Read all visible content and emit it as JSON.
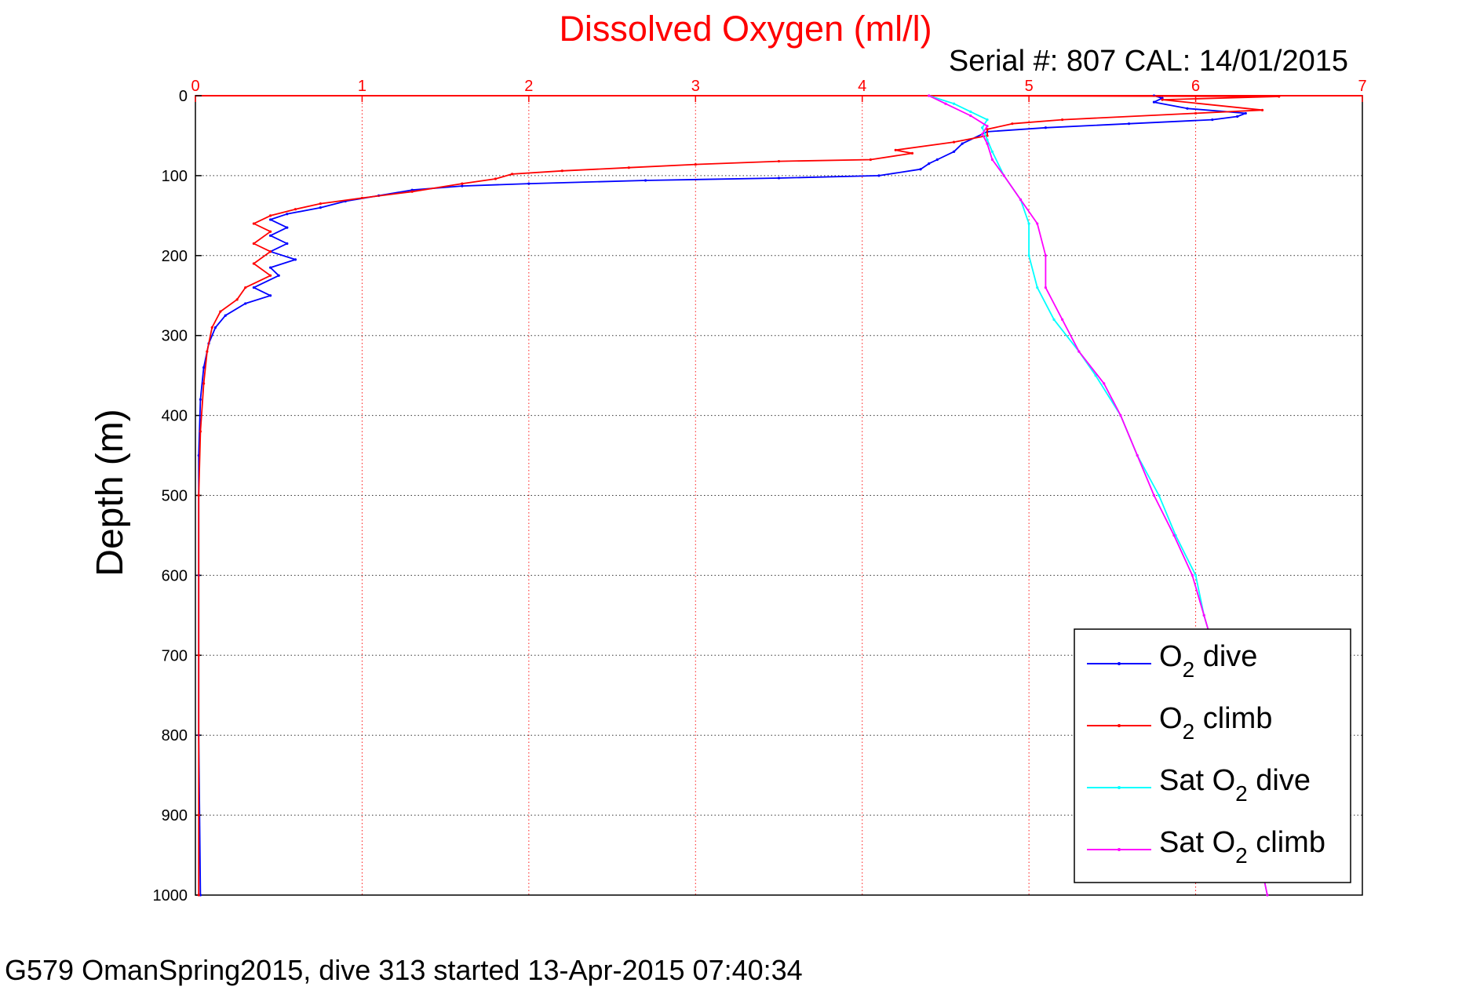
{
  "chart_data": {
    "type": "line",
    "title": "Dissolved Oxygen (ml/l)",
    "subtitle": "Serial #: 807  CAL: 14/01/2015",
    "ylabel": "Depth (m)",
    "footer": "G579 OmanSpring2015, dive 313 started 13-Apr-2015 07:40:34",
    "xlim": [
      0,
      7
    ],
    "ylim": [
      0,
      1000
    ],
    "y_reversed": true,
    "x_axis_position": "top",
    "x_ticks": [
      "0",
      "1",
      "2",
      "3",
      "4",
      "5",
      "6",
      "7"
    ],
    "y_ticks": [
      "0",
      "100",
      "200",
      "300",
      "400",
      "500",
      "600",
      "700",
      "800",
      "900",
      "1000"
    ],
    "grid": true,
    "legend_position": "bottom-right",
    "colors": {
      "title": "#ff0000",
      "x_axis": "#ff0000",
      "o2_dive": "#0000ff",
      "o2_climb": "#ff0000",
      "sat_dive": "#00ffff",
      "sat_climb": "#ff00ff"
    },
    "legend": [
      {
        "prefix": "O",
        "sub": "2",
        "suffix": " dive",
        "color": "#0000ff"
      },
      {
        "prefix": "O",
        "sub": "2",
        "suffix": " climb",
        "color": "#ff0000"
      },
      {
        "prefix": "Sat O",
        "sub": "2",
        "suffix": " dive",
        "color": "#00ffff"
      },
      {
        "prefix": "Sat O",
        "sub": "2",
        "suffix": " climb",
        "color": "#ff00ff"
      }
    ],
    "series": [
      {
        "name": "O2 dive",
        "color": "#0000ff",
        "points": [
          [
            5.75,
            0
          ],
          [
            5.8,
            3
          ],
          [
            5.75,
            8
          ],
          [
            5.95,
            16
          ],
          [
            6.3,
            22
          ],
          [
            6.25,
            26
          ],
          [
            6.1,
            30
          ],
          [
            5.6,
            35
          ],
          [
            5.1,
            40
          ],
          [
            4.75,
            45
          ],
          [
            4.6,
            60
          ],
          [
            4.55,
            70
          ],
          [
            4.45,
            80
          ],
          [
            4.4,
            85
          ],
          [
            4.35,
            92
          ],
          [
            4.1,
            100
          ],
          [
            3.5,
            103
          ],
          [
            2.7,
            106
          ],
          [
            2.0,
            110
          ],
          [
            1.6,
            113
          ],
          [
            1.3,
            118
          ],
          [
            1.1,
            125
          ],
          [
            0.9,
            132
          ],
          [
            0.75,
            140
          ],
          [
            0.55,
            148
          ],
          [
            0.45,
            155
          ],
          [
            0.55,
            165
          ],
          [
            0.45,
            175
          ],
          [
            0.55,
            185
          ],
          [
            0.45,
            195
          ],
          [
            0.6,
            205
          ],
          [
            0.45,
            215
          ],
          [
            0.5,
            225
          ],
          [
            0.35,
            240
          ],
          [
            0.45,
            250
          ],
          [
            0.3,
            260
          ],
          [
            0.18,
            275
          ],
          [
            0.12,
            290
          ],
          [
            0.08,
            310
          ],
          [
            0.05,
            340
          ],
          [
            0.03,
            380
          ],
          [
            0.02,
            450
          ],
          [
            0.02,
            600
          ],
          [
            0.02,
            800
          ],
          [
            0.03,
            1000
          ]
        ]
      },
      {
        "name": "O2 climb",
        "color": "#ff0000",
        "points": [
          [
            4.4,
            0
          ],
          [
            6.5,
            1
          ],
          [
            5.8,
            5
          ],
          [
            6.4,
            18
          ],
          [
            6.0,
            22
          ],
          [
            5.2,
            30
          ],
          [
            4.9,
            35
          ],
          [
            4.75,
            42
          ],
          [
            4.75,
            50
          ],
          [
            4.55,
            58
          ],
          [
            4.2,
            68
          ],
          [
            4.3,
            72
          ],
          [
            4.05,
            80
          ],
          [
            3.5,
            82
          ],
          [
            3.0,
            86
          ],
          [
            2.6,
            90
          ],
          [
            2.2,
            94
          ],
          [
            1.9,
            98
          ],
          [
            1.8,
            104
          ],
          [
            1.6,
            110
          ],
          [
            1.3,
            120
          ],
          [
            1.0,
            128
          ],
          [
            0.75,
            135
          ],
          [
            0.6,
            142
          ],
          [
            0.45,
            150
          ],
          [
            0.35,
            160
          ],
          [
            0.45,
            170
          ],
          [
            0.35,
            185
          ],
          [
            0.45,
            195
          ],
          [
            0.35,
            210
          ],
          [
            0.45,
            225
          ],
          [
            0.3,
            240
          ],
          [
            0.25,
            255
          ],
          [
            0.15,
            270
          ],
          [
            0.1,
            290
          ],
          [
            0.07,
            320
          ],
          [
            0.05,
            360
          ],
          [
            0.03,
            420
          ],
          [
            0.02,
            500
          ],
          [
            0.02,
            700
          ],
          [
            0.02,
            900
          ],
          [
            0.02,
            1000
          ]
        ]
      },
      {
        "name": "Sat O2 dive",
        "color": "#00ffff",
        "points": [
          [
            4.4,
            0
          ],
          [
            4.55,
            10
          ],
          [
            4.65,
            20
          ],
          [
            4.75,
            30
          ],
          [
            4.72,
            40
          ],
          [
            4.75,
            55
          ],
          [
            4.78,
            70
          ],
          [
            4.85,
            100
          ],
          [
            4.95,
            130
          ],
          [
            5.0,
            160
          ],
          [
            5.0,
            200
          ],
          [
            5.05,
            240
          ],
          [
            5.15,
            280
          ],
          [
            5.3,
            320
          ],
          [
            5.4,
            350
          ],
          [
            5.55,
            400
          ],
          [
            5.65,
            450
          ],
          [
            5.78,
            500
          ],
          [
            5.88,
            550
          ],
          [
            6.0,
            600
          ],
          [
            6.05,
            650
          ],
          [
            6.12,
            700
          ],
          [
            6.18,
            750
          ],
          [
            6.23,
            800
          ],
          [
            6.28,
            850
          ],
          [
            6.33,
            900
          ],
          [
            6.38,
            950
          ],
          [
            6.43,
            1000
          ]
        ]
      },
      {
        "name": "Sat O2 climb",
        "color": "#ff00ff",
        "points": [
          [
            4.4,
            0
          ],
          [
            4.5,
            10
          ],
          [
            4.65,
            25
          ],
          [
            4.75,
            38
          ],
          [
            4.72,
            48
          ],
          [
            4.75,
            60
          ],
          [
            4.78,
            80
          ],
          [
            4.85,
            100
          ],
          [
            4.95,
            130
          ],
          [
            5.05,
            160
          ],
          [
            5.1,
            200
          ],
          [
            5.1,
            240
          ],
          [
            5.2,
            280
          ],
          [
            5.3,
            320
          ],
          [
            5.45,
            360
          ],
          [
            5.55,
            400
          ],
          [
            5.65,
            450
          ],
          [
            5.75,
            500
          ],
          [
            5.87,
            550
          ],
          [
            5.98,
            600
          ],
          [
            6.05,
            650
          ],
          [
            6.12,
            700
          ],
          [
            6.18,
            750
          ],
          [
            6.23,
            800
          ],
          [
            6.28,
            850
          ],
          [
            6.33,
            900
          ],
          [
            6.38,
            950
          ],
          [
            6.43,
            1000
          ]
        ]
      }
    ]
  }
}
